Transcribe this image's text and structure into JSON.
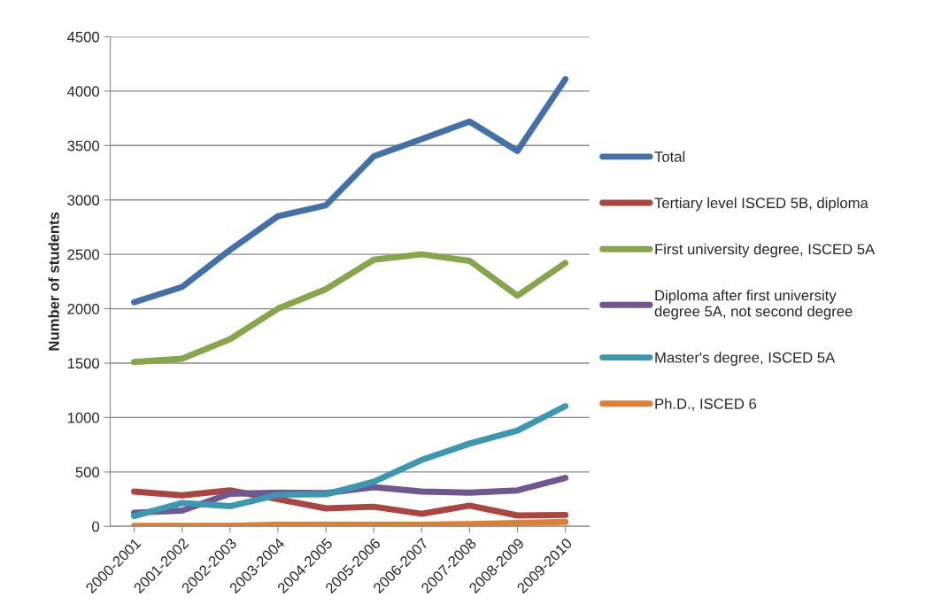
{
  "chart_data": {
    "type": "line",
    "ylabel": "Number of students",
    "categories": [
      "2000-2001",
      "2001-2002",
      "2002-2003",
      "2003-2004",
      "2004-2005",
      "2005-2006",
      "2006-2007",
      "2007-2008",
      "2008-2009",
      "2009-2010"
    ],
    "series": [
      {
        "name": "Total",
        "color": "#4470a8",
        "values": [
          2060,
          2200,
          2540,
          2850,
          2950,
          3400,
          3560,
          3720,
          3450,
          4110
        ]
      },
      {
        "name": "Tertiary level ISCED 5B, diploma",
        "color": "#aa4541",
        "values": [
          320,
          285,
          330,
          250,
          165,
          180,
          115,
          190,
          100,
          105
        ]
      },
      {
        "name": "First university degree, ISCED 5A",
        "color": "#87a64b",
        "values": [
          1510,
          1540,
          1720,
          2000,
          2180,
          2450,
          2500,
          2440,
          2120,
          2420
        ]
      },
      {
        "name": "Diploma after first university degree 5A, not second degree",
        "color": "#715791",
        "values": [
          125,
          145,
          300,
          310,
          305,
          360,
          320,
          310,
          330,
          445
        ]
      },
      {
        "name": "Master's degree, ISCED 5A",
        "color": "#3e97b0",
        "values": [
          95,
          215,
          185,
          290,
          295,
          410,
          610,
          760,
          880,
          1105
        ]
      },
      {
        "name": "Ph.D., ISCED 6",
        "color": "#dc8036",
        "values": [
          5,
          5,
          5,
          15,
          15,
          15,
          15,
          20,
          30,
          40
        ]
      }
    ],
    "ylim": [
      0,
      4500
    ],
    "yticks": [
      0,
      500,
      1000,
      1500,
      2000,
      2500,
      3000,
      3500,
      4000,
      4500
    ],
    "grid": "y",
    "legend": "right"
  }
}
